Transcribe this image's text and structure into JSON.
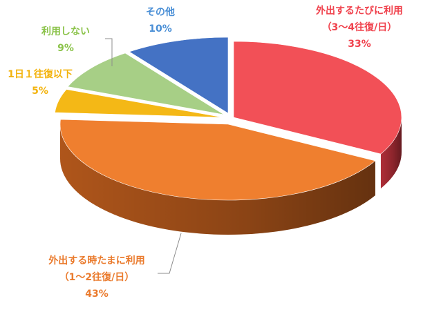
{
  "chart_data": {
    "type": "pie",
    "style": "3d-exploded-slices",
    "slices": [
      {
        "line1": "外出するたびに利用",
        "line2": "（3～4往復/日）",
        "pct_text": "33%",
        "value": 33,
        "color": "#f25057",
        "side": "#b8303a",
        "label_color": "#f0414c"
      },
      {
        "line1": "外出する時たまに利用",
        "line2": "（1～2往復/日）",
        "pct_text": "43%",
        "value": 43,
        "color": "#ef7f2f",
        "side": "#b85a1c",
        "label_color": "#ea7a2c"
      },
      {
        "line1": "1日１往復以下",
        "line2": "",
        "pct_text": "5%",
        "value": 5,
        "color": "#f4b816",
        "side": "#b8860b",
        "label_color": "#f3b30d"
      },
      {
        "line1": "利用しない",
        "line2": "",
        "pct_text": "9%",
        "value": 9,
        "color": "#a7cf86",
        "side": "#6f9a55",
        "label_color": "#8bc34a"
      },
      {
        "line1": "その他",
        "line2": "",
        "pct_text": "10%",
        "value": 10,
        "color": "#4472c4",
        "side": "#2f5597",
        "label_color": "#4a8fd6"
      }
    ]
  }
}
